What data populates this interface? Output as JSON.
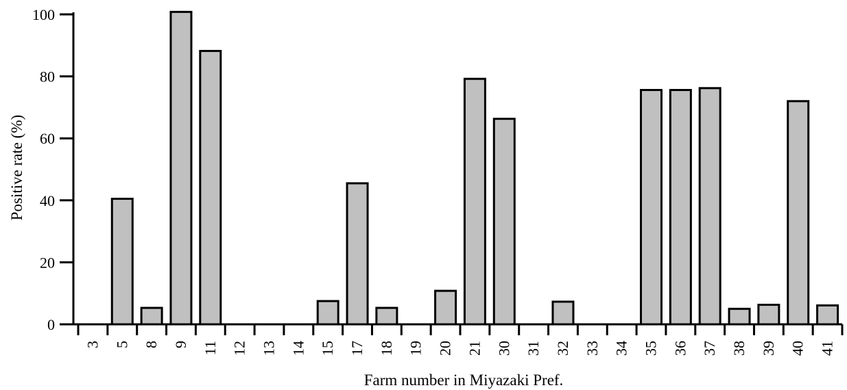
{
  "chart_data": {
    "type": "bar",
    "title": "",
    "xlabel": "Farm number in Miyazaki Pref.",
    "ylabel": "Positive rate (%)",
    "ylim": [
      0,
      100
    ],
    "yticks": [
      "0",
      "20",
      "40",
      "60",
      "80",
      "100"
    ],
    "categories": [
      "3",
      "5",
      "8",
      "9",
      "11",
      "12",
      "13",
      "14",
      "15",
      "17",
      "18",
      "19",
      "20",
      "21",
      "30",
      "31",
      "32",
      "33",
      "34",
      "35",
      "36",
      "37",
      "38",
      "39",
      "40",
      "41"
    ],
    "values": [
      0,
      40.5,
      5.3,
      100.8,
      88.2,
      0,
      0,
      0,
      7.5,
      45.5,
      5.3,
      0,
      10.8,
      79.2,
      66.3,
      0,
      7.3,
      0,
      0,
      75.6,
      75.6,
      76.2,
      5.0,
      6.3,
      72.0,
      6.1
    ],
    "colors": {
      "bar_fill": "#c0c0c0",
      "bar_stroke": "#000000"
    },
    "grid": false,
    "legend": "none"
  }
}
